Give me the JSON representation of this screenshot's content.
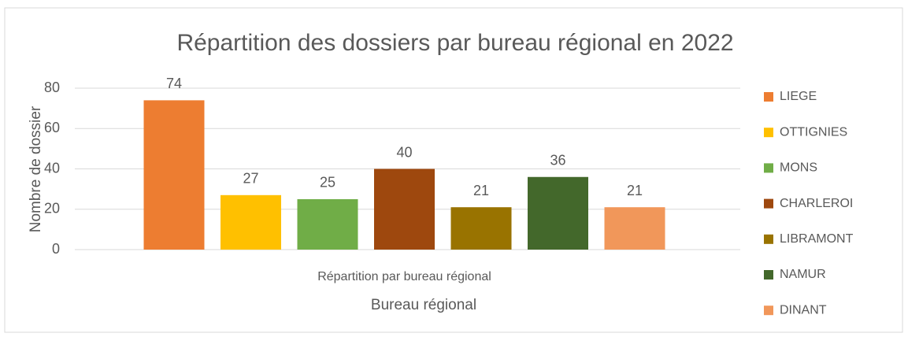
{
  "chart_data": {
    "type": "bar",
    "title": "Répartition des dossiers par bureau régional en 2022",
    "x_label": "Bureau régional",
    "y_label": "Nombre de dossier",
    "categories": [
      "Répartition par bureau régional"
    ],
    "series": [
      {
        "name": "LIEGE",
        "color": "#ED7D31",
        "values": [
          74
        ]
      },
      {
        "name": "OTTIGNIES",
        "color": "#FFC000",
        "values": [
          27
        ]
      },
      {
        "name": "MONS",
        "color": "#70AD47",
        "values": [
          25
        ]
      },
      {
        "name": "CHARLEROI",
        "color": "#9E480E",
        "values": [
          40
        ]
      },
      {
        "name": "LIBRAMONT",
        "color": "#997300",
        "values": [
          21
        ]
      },
      {
        "name": "NAMUR",
        "color": "#43682B",
        "values": [
          36
        ]
      },
      {
        "name": "DINANT",
        "color": "#F1975A",
        "values": [
          21
        ]
      }
    ],
    "ylim": [
      0,
      80
    ],
    "yticks": [
      0,
      20,
      40,
      60,
      80
    ],
    "grid": true,
    "legend": "right"
  }
}
